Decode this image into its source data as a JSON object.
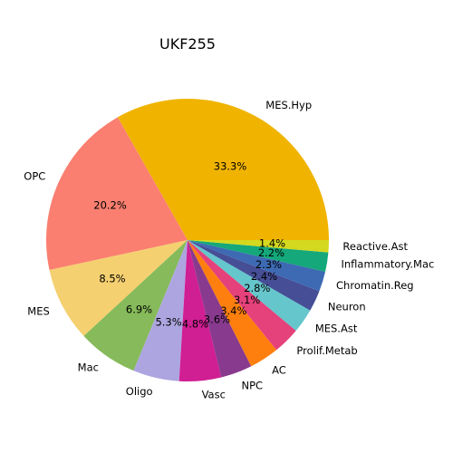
{
  "chart_data": {
    "type": "pie",
    "title": "UKF255",
    "slices": [
      {
        "label": "MES.Hyp",
        "value": 33.3,
        "pct_label": "33.3%",
        "color": "#F0B400"
      },
      {
        "label": "OPC",
        "value": 20.2,
        "pct_label": "20.2%",
        "color": "#FA7F70"
      },
      {
        "label": "MES",
        "value": 8.5,
        "pct_label": "8.5%",
        "color": "#F5D070"
      },
      {
        "label": "Mac",
        "value": 6.9,
        "pct_label": "6.9%",
        "color": "#86BA5A"
      },
      {
        "label": "Oligo",
        "value": 5.3,
        "pct_label": "5.3%",
        "color": "#ADA5E0"
      },
      {
        "label": "Vasc",
        "value": 4.8,
        "pct_label": "4.8%",
        "color": "#D01E93"
      },
      {
        "label": "NPC",
        "value": 3.6,
        "pct_label": "3.6%",
        "color": "#883A8E"
      },
      {
        "label": "AC",
        "value": 3.4,
        "pct_label": "3.4%",
        "color": "#FF7F0E"
      },
      {
        "label": "Prolif.Metab",
        "value": 3.1,
        "pct_label": "3.1%",
        "color": "#E5417A"
      },
      {
        "label": "MES.Ast",
        "value": 2.8,
        "pct_label": "2.8%",
        "color": "#65C6CC"
      },
      {
        "label": "Neuron",
        "value": 2.4,
        "pct_label": "2.4%",
        "color": "#464E96"
      },
      {
        "label": "Chromatin.Reg",
        "value": 2.3,
        "pct_label": "2.3%",
        "color": "#3D6AB3"
      },
      {
        "label": "Inflammatory.Mac",
        "value": 2.2,
        "pct_label": "2.2%",
        "color": "#14A87A"
      },
      {
        "label": "Reactive.Ast",
        "value": 1.4,
        "pct_label": "1.4%",
        "color": "#D4D81E"
      }
    ],
    "start_angle_deg": 0,
    "direction": "counterclockwise",
    "legend": "none"
  }
}
